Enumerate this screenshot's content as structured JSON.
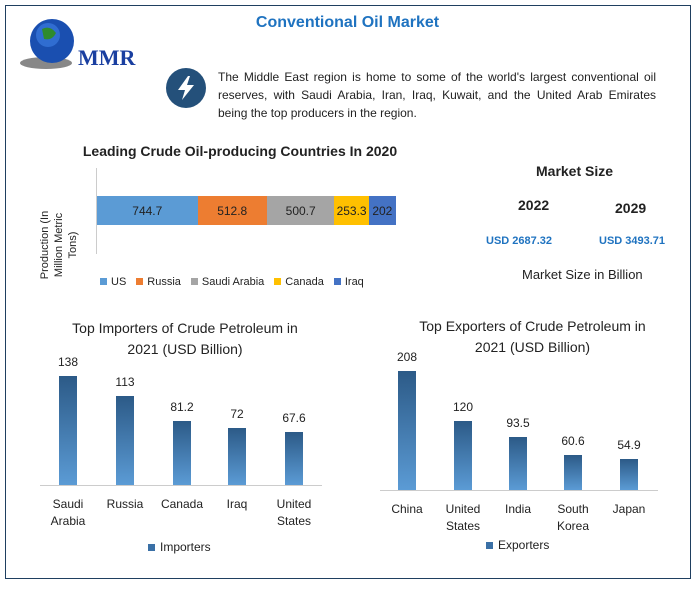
{
  "header": {
    "title": "Conventional Oil Market",
    "logo_text": "MMR",
    "description": "The Middle East region is home to some of the world's largest conventional oil reserves, with Saudi Arabia, Iran, Iraq, Kuwait, and the United Arab Emirates being the top producers in the region."
  },
  "market": {
    "title": "Market Size",
    "year1": "2022",
    "year2": "2029",
    "value1": "USD 2687.32",
    "value2": "USD 3493.71",
    "note": "Market Size in Billion"
  },
  "colors": {
    "US": "#5b9bd5",
    "Russia": "#ed7d31",
    "Saudi Arabia": "#a5a5a5",
    "Canada": "#ffc000",
    "Iraq": "#4472c4"
  },
  "chart_data": [
    {
      "type": "bar",
      "orientation": "horizontal-stacked",
      "title": "Leading Crude Oil-producing Countries In 2020",
      "ylabel": "Production (In Million Metric Tons)",
      "categories": [
        "US",
        "Russia",
        "Saudi Arabia",
        "Canada",
        "Iraq"
      ],
      "values": [
        744.7,
        512.8,
        500.7,
        253.3,
        202
      ],
      "labels": [
        "744.7",
        "512.8",
        "500.7",
        "253.3",
        "202"
      ],
      "legend": "bottom"
    },
    {
      "type": "bar",
      "title": "Top Importers of Crude Petroleum in 2021 (USD Billion)",
      "categories": [
        "Saudi Arabia",
        "Russia",
        "Canada",
        "Iraq",
        "United States"
      ],
      "values": [
        138,
        113,
        81.2,
        72,
        67.6
      ],
      "labels": [
        "138",
        "113",
        "81.2",
        "72",
        "67.6"
      ],
      "legend_label": "Importers",
      "ylim": [
        0,
        140
      ]
    },
    {
      "type": "bar",
      "title": "Top Exporters of Crude Petroleum in 2021 (USD Billion)",
      "categories": [
        "China",
        "United States",
        "India",
        "South Korea",
        "Japan"
      ],
      "values": [
        208,
        120,
        93.5,
        60.6,
        54.9
      ],
      "labels": [
        "208",
        "120",
        "93.5",
        "60.6",
        "54.9"
      ],
      "legend_label": "Exporters",
      "ylim": [
        0,
        210
      ]
    }
  ]
}
